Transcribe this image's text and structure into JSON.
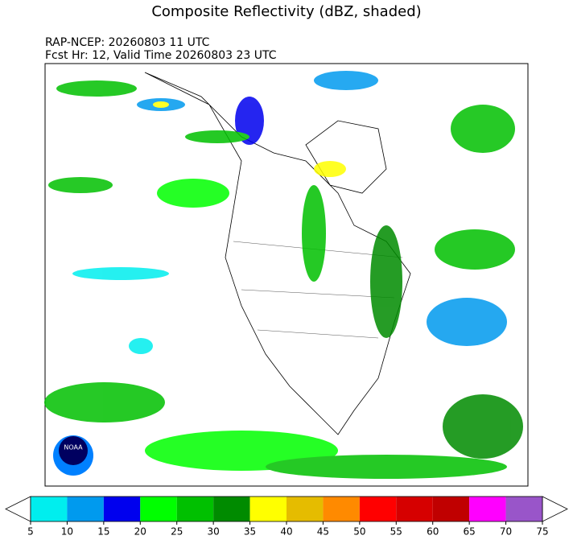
{
  "header": {
    "title": "Composite Reflectivity (dBZ, shaded)",
    "line1": "RAP-NCEP: 20260803 11 UTC",
    "line2": "Fcst Hr: 12, Valid Time 20260803 23 UTC"
  },
  "logo": {
    "label": "NOAA"
  },
  "colorbar": {
    "ticks": [
      5,
      10,
      15,
      20,
      25,
      30,
      35,
      40,
      45,
      50,
      55,
      60,
      65,
      70,
      75
    ],
    "colors": [
      "#00eeee",
      "#009aee",
      "#0000ee",
      "#00ff00",
      "#00c000",
      "#008b00",
      "#ffff00",
      "#e5bc00",
      "#ff8a00",
      "#ff0000",
      "#d60000",
      "#c00000",
      "#ff00ff",
      "#9955c9"
    ]
  }
}
